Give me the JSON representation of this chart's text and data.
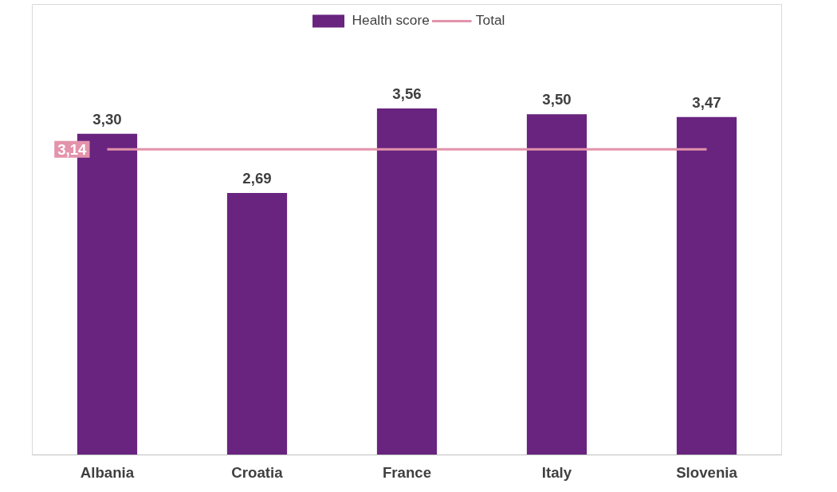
{
  "chart_data": {
    "type": "bar",
    "categories": [
      "Albania",
      "Croatia",
      "France",
      "Italy",
      "Slovenia"
    ],
    "grid": false,
    "legend": "top",
    "series": [
      {
        "name": "Health score",
        "color": "#68247f",
        "values": [
          3.3,
          2.69,
          3.56,
          3.5,
          3.47
        ],
        "value_labels": [
          "3,30",
          "2,69",
          "3,56",
          "3,50",
          "3,47"
        ]
      },
      {
        "name": "Total",
        "type": "line",
        "color": "#e393ab",
        "values": [
          3.14,
          3.14,
          3.14,
          3.14,
          3.14
        ],
        "value_labels": [
          "3,14",
          null,
          null,
          null,
          null
        ]
      }
    ]
  }
}
